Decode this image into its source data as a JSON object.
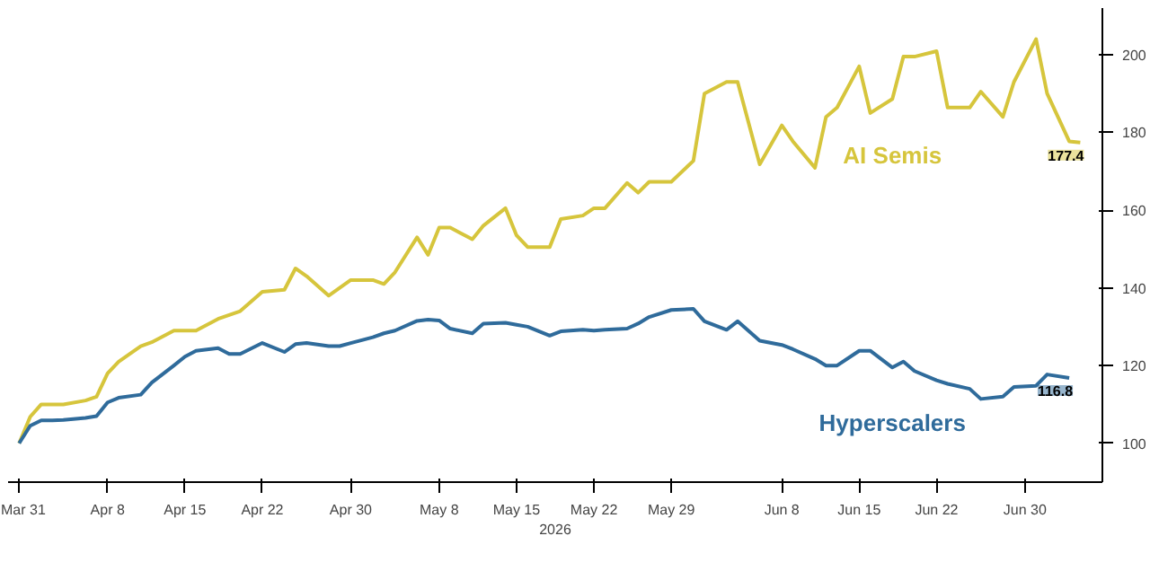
{
  "chart_data": {
    "type": "line",
    "xlabel": "2026",
    "x": [
      "2026-03-31",
      "2026-04-01",
      "2026-04-02",
      "2026-04-03",
      "2026-04-04",
      "2026-04-06",
      "2026-04-07",
      "2026-04-08",
      "2026-04-09",
      "2026-04-11",
      "2026-04-12",
      "2026-04-14",
      "2026-04-15",
      "2026-04-16",
      "2026-04-18",
      "2026-04-19",
      "2026-04-20",
      "2026-04-22",
      "2026-04-24",
      "2026-04-25",
      "2026-04-26",
      "2026-04-28",
      "2026-04-29",
      "2026-04-30",
      "2026-05-02",
      "2026-05-03",
      "2026-05-04",
      "2026-05-06",
      "2026-05-07",
      "2026-05-08",
      "2026-05-09",
      "2026-05-11",
      "2026-05-12",
      "2026-05-14",
      "2026-05-15",
      "2026-05-16",
      "2026-05-18",
      "2026-05-19",
      "2026-05-21",
      "2026-05-22",
      "2026-05-23",
      "2026-05-25",
      "2026-05-26",
      "2026-05-27",
      "2026-05-29",
      "2026-05-31",
      "2026-06-01",
      "2026-06-03",
      "2026-06-04",
      "2026-06-06",
      "2026-06-08",
      "2026-06-09",
      "2026-06-11",
      "2026-06-12",
      "2026-06-13",
      "2026-06-15",
      "2026-06-16",
      "2026-06-18",
      "2026-06-19",
      "2026-06-20",
      "2026-06-22",
      "2026-06-23",
      "2026-06-25",
      "2026-06-26",
      "2026-06-28",
      "2026-06-29",
      "2026-07-01",
      "2026-07-02",
      "2026-07-04",
      "2026-07-05"
    ],
    "series": [
      {
        "name": "AI Semis",
        "color": "#d6c53c",
        "values": [
          100,
          106.8,
          110,
          110,
          110,
          111,
          112,
          118,
          121,
          125,
          126,
          129,
          129,
          129,
          132,
          133,
          134,
          139,
          139.5,
          145,
          143,
          138,
          140,
          142,
          142,
          141,
          144,
          153,
          148.5,
          155.5,
          155.5,
          152.5,
          156,
          160.5,
          153.5,
          150.5,
          150.5,
          157.7,
          158.6,
          160.5,
          160.5,
          167,
          164.5,
          167.3,
          167.3,
          172.7,
          190,
          193,
          193,
          171.8,
          181.8,
          177.7,
          170.9,
          184,
          186.4,
          197,
          185,
          188.6,
          199.5,
          199.5,
          200.9,
          186.4,
          186.4,
          190.5,
          184,
          193,
          204,
          190,
          177.7,
          177.4
        ],
        "value_labels": [
          null,
          null,
          null,
          null,
          null,
          null,
          null,
          null,
          null,
          null,
          null,
          null,
          null,
          null,
          null,
          null,
          null,
          null,
          null,
          null,
          null,
          null,
          null,
          null,
          null,
          null,
          null,
          null,
          null,
          null,
          null,
          null,
          null,
          null,
          null,
          null,
          null,
          null,
          null,
          null,
          null,
          null,
          null,
          null,
          null,
          null,
          null,
          null,
          null,
          null,
          null,
          null,
          null,
          null,
          null,
          null,
          null,
          null,
          null,
          null,
          null,
          null,
          null,
          null,
          null,
          null,
          null,
          null,
          null,
          "177.4"
        ]
      },
      {
        "name": "Hyperscalers",
        "color": "#2f6b9b",
        "values": [
          100,
          104.5,
          105.9,
          105.9,
          106,
          106.5,
          107,
          110.5,
          111.7,
          112.5,
          115.6,
          120,
          122.3,
          123.8,
          124.5,
          123,
          123,
          125.8,
          123.5,
          125.5,
          125.8,
          125,
          125,
          125.8,
          127.3,
          128.3,
          129,
          131.5,
          131.8,
          131.6,
          129.5,
          128.3,
          130.8,
          131,
          130.5,
          130,
          127.7,
          128.8,
          129.2,
          129,
          129.2,
          129.5,
          130.8,
          132.5,
          134.3,
          134.6,
          131.4,
          129.2,
          131.4,
          126.4,
          125.3,
          124.2,
          121.7,
          120,
          120,
          123.8,
          123.8,
          119.5,
          121,
          118.6,
          116.2,
          115.3,
          114,
          111.4,
          112,
          114.5,
          114.8,
          117.7,
          116.8,
          null
        ],
        "value_labels": [
          null,
          null,
          null,
          null,
          null,
          null,
          null,
          null,
          null,
          null,
          null,
          null,
          null,
          null,
          null,
          null,
          null,
          null,
          null,
          null,
          null,
          null,
          null,
          null,
          null,
          null,
          null,
          null,
          null,
          null,
          null,
          null,
          null,
          null,
          null,
          null,
          null,
          null,
          null,
          null,
          null,
          null,
          null,
          null,
          null,
          null,
          null,
          null,
          null,
          null,
          null,
          null,
          null,
          null,
          null,
          null,
          null,
          null,
          null,
          null,
          null,
          null,
          null,
          null,
          null,
          null,
          null,
          null,
          "116.8",
          null
        ]
      }
    ],
    "xlim": [
      "2026-03-30",
      "2026-07-07"
    ],
    "xticks": [
      {
        "value": "2026-03-31",
        "label": "Mar 31"
      },
      {
        "value": "2026-04-08",
        "label": "Apr 8"
      },
      {
        "value": "2026-04-15",
        "label": "Apr 15"
      },
      {
        "value": "2026-04-22",
        "label": "Apr 22"
      },
      {
        "value": "2026-04-30",
        "label": "Apr 30"
      },
      {
        "value": "2026-05-08",
        "label": "May 8"
      },
      {
        "value": "2026-05-15",
        "label": "May 15"
      },
      {
        "value": "2026-05-22",
        "label": "May 22"
      },
      {
        "value": "2026-05-29",
        "label": "May 29"
      },
      {
        "value": "2026-06-08",
        "label": "Jun 8"
      },
      {
        "value": "2026-06-15",
        "label": "Jun 15"
      },
      {
        "value": "2026-06-22",
        "label": "Jun 22"
      },
      {
        "value": "2026-06-30",
        "label": "Jun 30"
      }
    ],
    "ylim": [
      90,
      212
    ],
    "yticks": [
      100,
      120,
      140,
      160,
      180,
      200
    ],
    "grid": false,
    "marker": "none",
    "line_style": "solid"
  }
}
